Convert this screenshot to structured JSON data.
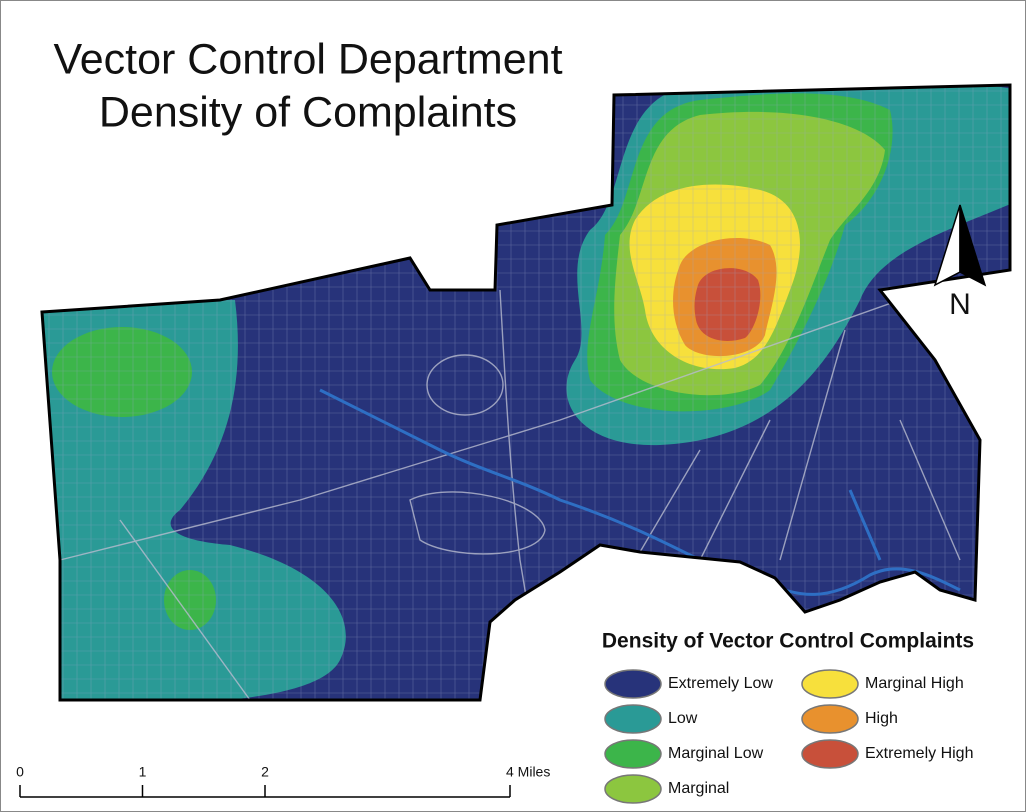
{
  "title": {
    "line1": "Vector Control Department",
    "line2": "Density of Complaints"
  },
  "north": {
    "label": "N"
  },
  "legend": {
    "title": "Density of Vector Control Complaints",
    "items": [
      {
        "name": "Extremely Low",
        "color": "#27337a"
      },
      {
        "name": "Low",
        "color": "#2a9a96"
      },
      {
        "name": "Marginal Low",
        "color": "#3cb54a"
      },
      {
        "name": "Marginal",
        "color": "#8cc63f"
      },
      {
        "name": "Marginal High",
        "color": "#f7e03c"
      },
      {
        "name": "High",
        "color": "#e8912e"
      },
      {
        "name": "Extremely High",
        "color": "#c8503a"
      }
    ]
  },
  "scale_bar": {
    "ticks": [
      0,
      1,
      2,
      {
        "value": 4,
        "label": "4 Miles"
      }
    ]
  }
}
